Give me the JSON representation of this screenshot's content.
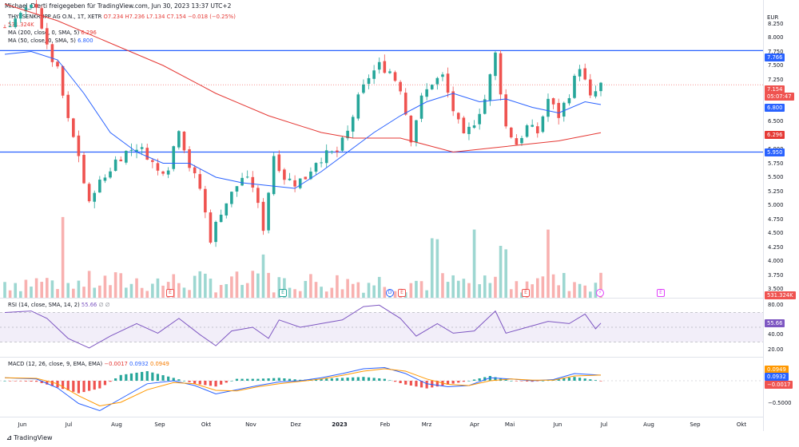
{
  "header": {
    "title": "Michael_Dierti freigegeben für TradingView.com, Jun 30, 2023 13:37 UTC+2"
  },
  "legend": {
    "symbol": "THYSSENKRUPP AG O.N., 1T, XETR",
    "ohlc": "O7.234  H7.236  L7.134  C7.154  −0.018 (−0.25%)",
    "volume_value": "531.324K",
    "ma200_label": "MA (200, close, 0, SMA, 5)",
    "ma200_value": "6.296",
    "ma50_label": "MA (50, close, 0, SMA, 5)",
    "ma50_value": "6.800",
    "rsi_label": "RSI (14, close, SMA, 14, 2)",
    "rsi_value": "55.66",
    "rsi_extra": "∅  ∅",
    "macd_label": "MACD (12, 26, close, 9, EMA, EMA)",
    "macd_hist": "−0.0017",
    "macd_line": "0.0932",
    "macd_signal": "0.0949"
  },
  "currency": "EUR",
  "price_axis": [
    "8.250",
    "8.000",
    "7.750",
    "7.500",
    "7.250",
    "7.000",
    "6.750",
    "6.500",
    "6.250",
    "6.000",
    "5.750",
    "5.500",
    "5.250",
    "5.000",
    "4.750",
    "4.500",
    "4.250",
    "4.000",
    "3.750",
    "3.500"
  ],
  "price_tags": {
    "resistance": "7.766",
    "last": "7.154",
    "countdown": "05:07:47",
    "ma50": "6.800",
    "ma200": "6.296",
    "support": "5.950",
    "volume": "531.324K"
  },
  "rsi_axis": [
    "80.00",
    "40.00",
    "20.00"
  ],
  "rsi_tag": "55.66",
  "macd_axis": [
    "−0.5000"
  ],
  "macd_tags": {
    "signal": "0.0949",
    "macd": "0.0932",
    "hist": "−0.0017"
  },
  "time_axis": [
    "Jun",
    "Jul",
    "Aug",
    "Sep",
    "Okt",
    "Nov",
    "Dez",
    "2023",
    "Feb",
    "Mrz",
    "Apr",
    "Mai",
    "Jun",
    "Jul",
    "Aug",
    "Sep",
    "Okt"
  ],
  "events": {
    "earnings": "E",
    "dividend": "D",
    "split": "⚡"
  },
  "brand": "TradingView",
  "colors": {
    "up": "#26a69a",
    "down": "#ef5350",
    "ma200": "#e53935",
    "ma50": "#2962ff",
    "hline": "#2962ff",
    "rsi": "#7e57c2",
    "macd": "#2962ff",
    "signal": "#ff9800"
  },
  "chart_data": {
    "type": "candlestick",
    "title": "THYSSENKRUPP AG O.N., 1T, XETR",
    "ylabel": "EUR",
    "ylim": [
      3.3,
      8.5
    ],
    "horizontal_lines": [
      7.766,
      5.95
    ],
    "close_path": [
      {
        "x": 0,
        "y": 8.2
      },
      {
        "x": 3,
        "y": 8.4
      },
      {
        "x": 6,
        "y": 8.6
      },
      {
        "x": 8,
        "y": 7.8
      },
      {
        "x": 10,
        "y": 7.4
      },
      {
        "x": 12,
        "y": 6.5
      },
      {
        "x": 14,
        "y": 5.9
      },
      {
        "x": 15,
        "y": 5.4
      },
      {
        "x": 16,
        "y": 5.0
      },
      {
        "x": 17,
        "y": 5.3
      },
      {
        "x": 19,
        "y": 5.5
      },
      {
        "x": 21,
        "y": 5.8
      },
      {
        "x": 23,
        "y": 5.95
      },
      {
        "x": 25,
        "y": 6.05
      },
      {
        "x": 27,
        "y": 5.9
      },
      {
        "x": 29,
        "y": 5.6
      },
      {
        "x": 31,
        "y": 5.7
      },
      {
        "x": 33,
        "y": 6.4
      },
      {
        "x": 35,
        "y": 5.7
      },
      {
        "x": 37,
        "y": 5.3
      },
      {
        "x": 39,
        "y": 4.4
      },
      {
        "x": 41,
        "y": 4.9
      },
      {
        "x": 43,
        "y": 5.2
      },
      {
        "x": 45,
        "y": 5.5
      },
      {
        "x": 47,
        "y": 5.35
      },
      {
        "x": 49,
        "y": 4.6
      },
      {
        "x": 51,
        "y": 5.9
      },
      {
        "x": 53,
        "y": 5.5
      },
      {
        "x": 55,
        "y": 5.4
      },
      {
        "x": 57,
        "y": 5.5
      },
      {
        "x": 59,
        "y": 5.8
      },
      {
        "x": 61,
        "y": 5.9
      },
      {
        "x": 63,
        "y": 5.95
      },
      {
        "x": 65,
        "y": 6.3
      },
      {
        "x": 67,
        "y": 6.9
      },
      {
        "x": 69,
        "y": 7.3
      },
      {
        "x": 71,
        "y": 7.5
      },
      {
        "x": 73,
        "y": 7.4
      },
      {
        "x": 75,
        "y": 7.1
      },
      {
        "x": 77,
        "y": 6.2
      },
      {
        "x": 79,
        "y": 6.9
      },
      {
        "x": 81,
        "y": 7.2
      },
      {
        "x": 83,
        "y": 7.3
      },
      {
        "x": 85,
        "y": 6.7
      },
      {
        "x": 87,
        "y": 6.2
      },
      {
        "x": 89,
        "y": 6.5
      },
      {
        "x": 91,
        "y": 6.9
      },
      {
        "x": 93,
        "y": 7.7
      },
      {
        "x": 95,
        "y": 6.4
      },
      {
        "x": 97,
        "y": 6.1
      },
      {
        "x": 99,
        "y": 6.4
      },
      {
        "x": 101,
        "y": 6.3
      },
      {
        "x": 103,
        "y": 6.9
      },
      {
        "x": 105,
        "y": 6.6
      },
      {
        "x": 107,
        "y": 7.0
      },
      {
        "x": 109,
        "y": 7.5
      },
      {
        "x": 111,
        "y": 6.9
      },
      {
        "x": 113,
        "y": 7.154
      }
    ],
    "series": [
      {
        "name": "MA (200, close, 0, SMA, 5)",
        "last": 6.296,
        "points": [
          {
            "x": 0,
            "y": 8.6
          },
          {
            "x": 10,
            "y": 8.3
          },
          {
            "x": 20,
            "y": 7.9
          },
          {
            "x": 30,
            "y": 7.5
          },
          {
            "x": 40,
            "y": 7.0
          },
          {
            "x": 50,
            "y": 6.6
          },
          {
            "x": 60,
            "y": 6.3
          },
          {
            "x": 66,
            "y": 6.2
          },
          {
            "x": 75,
            "y": 6.2
          },
          {
            "x": 85,
            "y": 5.95
          },
          {
            "x": 95,
            "y": 6.05
          },
          {
            "x": 105,
            "y": 6.15
          },
          {
            "x": 113,
            "y": 6.296
          }
        ]
      },
      {
        "name": "MA (50, close, 0, SMA, 5)",
        "last": 6.8,
        "points": [
          {
            "x": 0,
            "y": 7.7
          },
          {
            "x": 5,
            "y": 7.75
          },
          {
            "x": 10,
            "y": 7.6
          },
          {
            "x": 15,
            "y": 7.0
          },
          {
            "x": 20,
            "y": 6.3
          },
          {
            "x": 25,
            "y": 5.95
          },
          {
            "x": 30,
            "y": 5.75
          },
          {
            "x": 35,
            "y": 5.75
          },
          {
            "x": 40,
            "y": 5.5
          },
          {
            "x": 45,
            "y": 5.4
          },
          {
            "x": 50,
            "y": 5.35
          },
          {
            "x": 55,
            "y": 5.3
          },
          {
            "x": 60,
            "y": 5.6
          },
          {
            "x": 65,
            "y": 5.95
          },
          {
            "x": 70,
            "y": 6.3
          },
          {
            "x": 75,
            "y": 6.6
          },
          {
            "x": 80,
            "y": 6.85
          },
          {
            "x": 85,
            "y": 7.0
          },
          {
            "x": 90,
            "y": 6.85
          },
          {
            "x": 95,
            "y": 6.9
          },
          {
            "x": 100,
            "y": 6.75
          },
          {
            "x": 105,
            "y": 6.65
          },
          {
            "x": 110,
            "y": 6.85
          },
          {
            "x": 113,
            "y": 6.8
          }
        ]
      }
    ],
    "rsi": {
      "ylim": [
        10,
        90
      ],
      "bands": [
        30,
        70
      ],
      "last": 55.66,
      "points": [
        {
          "x": 0,
          "y": 70
        },
        {
          "x": 5,
          "y": 72
        },
        {
          "x": 8,
          "y": 62
        },
        {
          "x": 12,
          "y": 35
        },
        {
          "x": 16,
          "y": 22
        },
        {
          "x": 20,
          "y": 38
        },
        {
          "x": 25,
          "y": 55
        },
        {
          "x": 29,
          "y": 42
        },
        {
          "x": 33,
          "y": 62
        },
        {
          "x": 37,
          "y": 40
        },
        {
          "x": 40,
          "y": 25
        },
        {
          "x": 43,
          "y": 45
        },
        {
          "x": 47,
          "y": 50
        },
        {
          "x": 50,
          "y": 35
        },
        {
          "x": 52,
          "y": 60
        },
        {
          "x": 56,
          "y": 50
        },
        {
          "x": 60,
          "y": 55
        },
        {
          "x": 64,
          "y": 60
        },
        {
          "x": 68,
          "y": 78
        },
        {
          "x": 71,
          "y": 80
        },
        {
          "x": 75,
          "y": 62
        },
        {
          "x": 78,
          "y": 38
        },
        {
          "x": 82,
          "y": 55
        },
        {
          "x": 85,
          "y": 42
        },
        {
          "x": 89,
          "y": 45
        },
        {
          "x": 93,
          "y": 72
        },
        {
          "x": 95,
          "y": 42
        },
        {
          "x": 99,
          "y": 50
        },
        {
          "x": 103,
          "y": 58
        },
        {
          "x": 107,
          "y": 55
        },
        {
          "x": 110,
          "y": 68
        },
        {
          "x": 112,
          "y": 48
        },
        {
          "x": 113,
          "y": 55.66
        }
      ]
    },
    "macd": {
      "ylim": [
        -0.6,
        0.4
      ],
      "last_macd": 0.0932,
      "last_signal": 0.0949,
      "last_hist": -0.0017,
      "macd": [
        {
          "x": 0,
          "y": 0.05
        },
        {
          "x": 6,
          "y": 0.03
        },
        {
          "x": 10,
          "y": -0.12
        },
        {
          "x": 14,
          "y": -0.38
        },
        {
          "x": 18,
          "y": -0.5
        },
        {
          "x": 22,
          "y": -0.3
        },
        {
          "x": 27,
          "y": -0.05
        },
        {
          "x": 32,
          "y": 0.0
        },
        {
          "x": 36,
          "y": -0.08
        },
        {
          "x": 40,
          "y": -0.22
        },
        {
          "x": 44,
          "y": -0.15
        },
        {
          "x": 48,
          "y": -0.08
        },
        {
          "x": 52,
          "y": -0.02
        },
        {
          "x": 56,
          "y": 0.0
        },
        {
          "x": 60,
          "y": 0.05
        },
        {
          "x": 64,
          "y": 0.12
        },
        {
          "x": 68,
          "y": 0.2
        },
        {
          "x": 72,
          "y": 0.22
        },
        {
          "x": 76,
          "y": 0.12
        },
        {
          "x": 80,
          "y": -0.05
        },
        {
          "x": 84,
          "y": -0.1
        },
        {
          "x": 88,
          "y": -0.08
        },
        {
          "x": 92,
          "y": 0.05
        },
        {
          "x": 96,
          "y": 0.03
        },
        {
          "x": 100,
          "y": 0.0
        },
        {
          "x": 104,
          "y": 0.02
        },
        {
          "x": 108,
          "y": 0.12
        },
        {
          "x": 113,
          "y": 0.0932
        }
      ],
      "signal": [
        {
          "x": 0,
          "y": 0.05
        },
        {
          "x": 6,
          "y": 0.04
        },
        {
          "x": 10,
          "y": -0.05
        },
        {
          "x": 14,
          "y": -0.25
        },
        {
          "x": 18,
          "y": -0.42
        },
        {
          "x": 22,
          "y": -0.36
        },
        {
          "x": 27,
          "y": -0.15
        },
        {
          "x": 32,
          "y": -0.03
        },
        {
          "x": 36,
          "y": -0.05
        },
        {
          "x": 40,
          "y": -0.16
        },
        {
          "x": 44,
          "y": -0.17
        },
        {
          "x": 48,
          "y": -0.1
        },
        {
          "x": 52,
          "y": -0.05
        },
        {
          "x": 56,
          "y": -0.01
        },
        {
          "x": 60,
          "y": 0.03
        },
        {
          "x": 64,
          "y": 0.09
        },
        {
          "x": 68,
          "y": 0.16
        },
        {
          "x": 72,
          "y": 0.2
        },
        {
          "x": 76,
          "y": 0.16
        },
        {
          "x": 80,
          "y": 0.03
        },
        {
          "x": 84,
          "y": -0.06
        },
        {
          "x": 88,
          "y": -0.08
        },
        {
          "x": 92,
          "y": 0.0
        },
        {
          "x": 96,
          "y": 0.03
        },
        {
          "x": 100,
          "y": 0.01
        },
        {
          "x": 104,
          "y": 0.01
        },
        {
          "x": 108,
          "y": 0.08
        },
        {
          "x": 113,
          "y": 0.0949
        }
      ]
    }
  }
}
